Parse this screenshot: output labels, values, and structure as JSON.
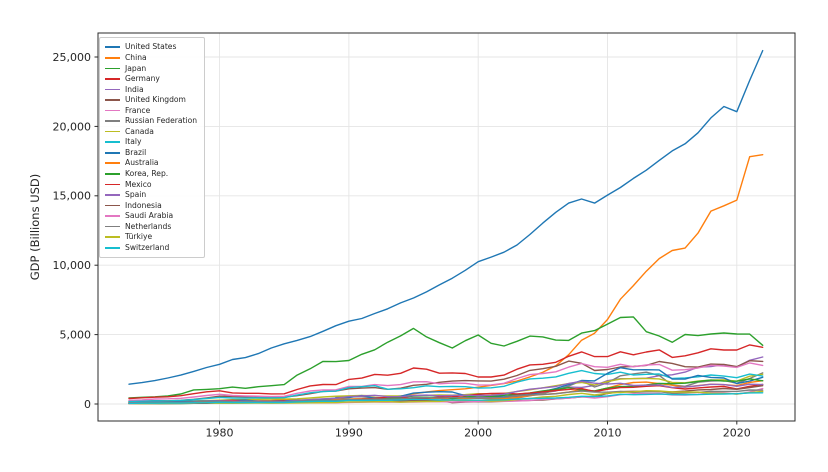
{
  "chart_data": {
    "type": "line",
    "title": "",
    "xlabel": "",
    "ylabel": "GDP (Billions USD)",
    "xlim": [
      1970.6,
      2024.5
    ],
    "ylim": [
      -1225,
      26730
    ],
    "xticks": [
      1980,
      1990,
      2000,
      2010,
      2020
    ],
    "yticks": [
      0,
      5000,
      10000,
      15000,
      20000,
      25000
    ],
    "ytick_labels": [
      "0",
      "5,000",
      "10,000",
      "15,000",
      "20,000",
      "25,000"
    ],
    "grid": true,
    "grid_color": "#e5e5e5",
    "spine_color": "#2b2b2b",
    "legend_position": "upper-left",
    "years": [
      1973,
      1974,
      1975,
      1976,
      1977,
      1978,
      1979,
      1980,
      1981,
      1982,
      1983,
      1984,
      1985,
      1986,
      1987,
      1988,
      1989,
      1990,
      1991,
      1992,
      1993,
      1994,
      1995,
      1996,
      1997,
      1998,
      1999,
      2000,
      2001,
      2002,
      2003,
      2004,
      2005,
      2006,
      2007,
      2008,
      2009,
      2010,
      2011,
      2012,
      2013,
      2014,
      2015,
      2016,
      2017,
      2018,
      2019,
      2020,
      2021,
      2022
    ],
    "series": [
      {
        "name": "United States",
        "color": "#1f77b4",
        "values": [
          1425,
          1545,
          1685,
          1873,
          2082,
          2352,
          2627,
          2857,
          3207,
          3344,
          3634,
          4038,
          4339,
          4580,
          4855,
          5236,
          5642,
          5963,
          6158,
          6520,
          6859,
          7287,
          7640,
          8073,
          8578,
          9063,
          9631,
          10251,
          10582,
          10936,
          11458,
          12214,
          13037,
          13815,
          14474,
          14769,
          14478,
          15049,
          15600,
          16254,
          16843,
          17551,
          18238,
          18745,
          19543,
          20612,
          21433,
          21060,
          23315,
          25463
        ]
      },
      {
        "name": "China",
        "color": "#ff7f0e",
        "values": [
          138,
          144,
          163,
          153,
          174,
          149,
          178,
          191,
          196,
          205,
          231,
          260,
          309,
          301,
          273,
          312,
          348,
          361,
          383,
          427,
          445,
          564,
          734,
          864,
          962,
          1029,
          1094,
          1211,
          1339,
          1471,
          1660,
          1955,
          2286,
          2752,
          3550,
          4594,
          5102,
          6087,
          7552,
          8532,
          9570,
          10476,
          11062,
          11233,
          12310,
          13895,
          14280,
          14688,
          17820,
          17963
        ]
      },
      {
        "name": "Japan",
        "color": "#2ca02c",
        "values": [
          432,
          480,
          521,
          586,
          721,
          1013,
          1055,
          1105,
          1218,
          1134,
          1243,
          1318,
          1399,
          2079,
          2533,
          3071,
          3054,
          3133,
          3584,
          3908,
          4454,
          4907,
          5449,
          4834,
          4415,
          4033,
          4562,
          4968,
          4374,
          4182,
          4519,
          4893,
          4831,
          4601,
          4579,
          5106,
          5289,
          5759,
          6233,
          6272,
          5212,
          4897,
          4445,
          5004,
          4931,
          5041,
          5118,
          5040,
          5035,
          4231
        ]
      },
      {
        "name": "Germany",
        "color": "#d62728",
        "values": [
          399,
          446,
          490,
          519,
          599,
          740,
          880,
          950,
          800,
          773,
          770,
          725,
          732,
          1047,
          1307,
          1407,
          1398,
          1772,
          1869,
          2132,
          2072,
          2210,
          2592,
          2504,
          2217,
          2243,
          2199,
          1948,
          1945,
          2079,
          2506,
          2819,
          2861,
          3002,
          3440,
          3752,
          3418,
          3417,
          3761,
          3546,
          3746,
          3899,
          3358,
          3469,
          3690,
          3977,
          3889,
          3887,
          4260,
          4082
        ]
      },
      {
        "name": "India",
        "color": "#9467bd",
        "values": [
          85,
          99,
          98,
          102,
          120,
          137,
          152,
          186,
          193,
          200,
          218,
          212,
          233,
          248,
          279,
          296,
          296,
          321,
          270,
          288,
          279,
          327,
          360,
          393,
          416,
          421,
          459,
          468,
          485,
          515,
          618,
          721,
          820,
          940,
          1217,
          1199,
          1342,
          1676,
          1823,
          1828,
          1857,
          2039,
          2104,
          2295,
          2651,
          2703,
          2836,
          2672,
          3150,
          3385
        ]
      },
      {
        "name": "United Kingdom",
        "color": "#8c564b",
        "values": [
          192,
          206,
          241,
          232,
          263,
          335,
          439,
          565,
          541,
          515,
          489,
          461,
          489,
          601,
          745,
          910,
          927,
          1093,
          1142,
          1179,
          1061,
          1140,
          1345,
          1419,
          1561,
          1652,
          1687,
          1666,
          1649,
          1785,
          2054,
          2421,
          2543,
          2713,
          3090,
          2929,
          2412,
          2485,
          2663,
          2707,
          2784,
          3065,
          2928,
          2689,
          2662,
          2871,
          2851,
          2697,
          3123,
          3071
        ]
      },
      {
        "name": "France",
        "color": "#e377c2",
        "values": [
          264,
          285,
          362,
          374,
          410,
          507,
          613,
          701,
          615,
          584,
          559,
          530,
          553,
          771,
          934,
          1018,
          1025,
          1269,
          1269,
          1401,
          1322,
          1394,
          1601,
          1605,
          1452,
          1503,
          1493,
          1362,
          1377,
          1494,
          1840,
          2115,
          2196,
          2320,
          2657,
          2918,
          2690,
          2642,
          2861,
          2683,
          2811,
          2852,
          2438,
          2471,
          2595,
          2791,
          2729,
          2639,
          2958,
          2783
        ]
      },
      {
        "name": "Russian Federation",
        "color": "#7f7f7f",
        "values": [
          null,
          null,
          null,
          null,
          null,
          null,
          null,
          null,
          null,
          null,
          null,
          null,
          null,
          null,
          null,
          null,
          507,
          517,
          518,
          460,
          435,
          395,
          396,
          392,
          405,
          270,
          196,
          260,
          307,
          345,
          430,
          591,
          764,
          990,
          1300,
          1661,
          1223,
          1525,
          2032,
          2170,
          2289,
          2059,
          1363,
          1277,
          1574,
          1657,
          1693,
          1489,
          1837,
          2240
        ]
      },
      {
        "name": "Canada",
        "color": "#bcbd22",
        "values": [
          131,
          160,
          174,
          207,
          212,
          219,
          244,
          274,
          307,
          314,
          341,
          356,
          365,
          377,
          431,
          507,
          565,
          594,
          610,
          592,
          577,
          578,
          604,
          628,
          653,
          631,
          678,
          744,
          738,
          760,
          895,
          1026,
          1169,
          1319,
          1469,
          1549,
          1371,
          1617,
          1793,
          1828,
          1847,
          1806,
          1557,
          1528,
          1649,
          1725,
          1742,
          1645,
          2001,
          2140
        ]
      },
      {
        "name": "Italy",
        "color": "#17becf",
        "values": [
          175,
          199,
          227,
          224,
          257,
          314,
          393,
          477,
          430,
          427,
          443,
          437,
          453,
          642,
          806,
          890,
          932,
          1181,
          1245,
          1319,
          1064,
          1095,
          1171,
          1309,
          1243,
          1269,
          1248,
          1147,
          1168,
          1275,
          1577,
          1806,
          1857,
          1949,
          2213,
          2408,
          2199,
          2136,
          2294,
          2086,
          2141,
          2162,
          1836,
          1877,
          1961,
          2092,
          2011,
          1897,
          2155,
          2010
        ]
      },
      {
        "name": "Brazil",
        "color": "#1f77b4",
        "values": [
          79,
          105,
          124,
          153,
          176,
          201,
          225,
          235,
          264,
          281,
          203,
          209,
          231,
          268,
          294,
          330,
          425,
          462,
          602,
          400,
          437,
          558,
          786,
          850,
          883,
          864,
          600,
          655,
          560,
          510,
          558,
          669,
          891,
          1107,
          1397,
          1696,
          1667,
          2209,
          2616,
          2465,
          2472,
          2456,
          1802,
          1796,
          2063,
          1917,
          1873,
          1476,
          1649,
          1920
        ]
      },
      {
        "name": "Australia",
        "color": "#ff7f0e",
        "values": [
          64,
          89,
          97,
          105,
          110,
          118,
          135,
          150,
          177,
          194,
          177,
          193,
          170,
          182,
          189,
          236,
          299,
          311,
          326,
          325,
          312,
          323,
          368,
          401,
          435,
          399,
          389,
          415,
          379,
          394,
          467,
          613,
          694,
          747,
          854,
          1055,
          928,
          1146,
          1398,
          1546,
          1577,
          1468,
          1351,
          1210,
          1326,
          1428,
          1392,
          1327,
          1553,
          1675
        ]
      },
      {
        "name": "Korea, Rep.",
        "color": "#2ca02c",
        "values": [
          14,
          20,
          22,
          30,
          38,
          52,
          66,
          65,
          72,
          78,
          87,
          97,
          101,
          116,
          146,
          197,
          246,
          283,
          330,
          356,
          392,
          463,
          566,
          610,
          569,
          383,
          497,
          576,
          547,
          627,
          702,
          793,
          935,
          1053,
          1172,
          1002,
          944,
          1144,
          1253,
          1278,
          1371,
          1484,
          1466,
          1500,
          1624,
          1725,
          1651,
          1644,
          1811,
          1674
        ]
      },
      {
        "name": "Mexico",
        "color": "#d62728",
        "values": [
          55,
          72,
          88,
          89,
          82,
          102,
          135,
          228,
          250,
          174,
          149,
          176,
          218,
          130,
          141,
          183,
          223,
          298,
          349,
          404,
          500,
          527,
          360,
          411,
          500,
          527,
          600,
          708,
          757,
          772,
          729,
          782,
          877,
          975,
          1053,
          1110,
          900,
          1058,
          1180,
          1201,
          1274,
          1315,
          1171,
          1078,
          1158,
          1222,
          1269,
          1090,
          1273,
          1414
        ]
      },
      {
        "name": "Spain",
        "color": "#9467bd",
        "values": [
          87,
          103,
          115,
          117,
          129,
          154,
          199,
          230,
          202,
          195,
          170,
          172,
          182,
          250,
          318,
          376,
          413,
          536,
          577,
          629,
          523,
          529,
          615,
          642,
          589,
          618,
          633,
          598,
          627,
          706,
          907,
          1069,
          1157,
          1264,
          1479,
          1635,
          1499,
          1432,
          1488,
          1330,
          1355,
          1377,
          1196,
          1233,
          1313,
          1422,
          1394,
          1277,
          1427,
          1398
        ]
      },
      {
        "name": "Indonesia",
        "color": "#8c564b",
        "values": [
          16,
          26,
          30,
          37,
          46,
          52,
          51,
          99,
          110,
          113,
          103,
          100,
          98,
          90,
          85,
          95,
          109,
          138,
          150,
          168,
          190,
          215,
          244,
          274,
          260,
          95,
          140,
          165,
          160,
          196,
          235,
          257,
          286,
          365,
          432,
          510,
          540,
          755,
          893,
          918,
          913,
          891,
          861,
          932,
          1016,
          1042,
          1119,
          1059,
          1186,
          1319
        ]
      },
      {
        "name": "Saudi Arabia",
        "color": "#e377c2",
        "values": [
          15,
          45,
          46,
          64,
          74,
          80,
          111,
          164,
          184,
          153,
          129,
          119,
          104,
          87,
          86,
          88,
          95,
          117,
          132,
          136,
          132,
          135,
          143,
          158,
          165,
          146,
          161,
          190,
          184,
          189,
          215,
          259,
          328,
          377,
          415,
          520,
          430,
          528,
          671,
          736,
          747,
          756,
          654,
          645,
          689,
          817,
          804,
          703,
          869,
          1108
        ]
      },
      {
        "name": "Netherlands",
        "color": "#7f7f7f",
        "values": [
          72,
          85,
          99,
          107,
          123,
          150,
          175,
          195,
          165,
          160,
          153,
          142,
          143,
          200,
          245,
          259,
          258,
          319,
          325,
          360,
          351,
          374,
          458,
          463,
          427,
          452,
          451,
          417,
          432,
          473,
          578,
          655,
          686,
          734,
          847,
          936,
          858,
          847,
          905,
          839,
          877,
          892,
          765,
          784,
          834,
          914,
          910,
          910,
          1012,
          991
        ]
      },
      {
        "name": "Türkiye",
        "color": "#bcbd22",
        "values": [
          27,
          37,
          46,
          53,
          59,
          66,
          90,
          69,
          72,
          65,
          62,
          60,
          67,
          76,
          87,
          91,
          108,
          151,
          151,
          159,
          181,
          131,
          169,
          181,
          190,
          276,
          256,
          274,
          201,
          240,
          315,
          405,
          506,
          557,
          682,
          770,
          649,
          777,
          838,
          880,
          958,
          939,
          864,
          869,
          859,
          778,
          760,
          720,
          819,
          907
        ]
      },
      {
        "name": "Switzerland",
        "color": "#17becf",
        "values": [
          46,
          54,
          61,
          62,
          66,
          89,
          97,
          119,
          110,
          111,
          110,
          105,
          105,
          148,
          182,
          198,
          194,
          258,
          260,
          268,
          264,
          292,
          342,
          332,
          288,
          295,
          288,
          272,
          279,
          301,
          353,
          394,
          408,
          430,
          479,
          555,
          541,
          584,
          700,
          668,
          689,
          710,
          680,
          672,
          680,
          706,
          721,
          742,
          800,
          808
        ]
      }
    ]
  }
}
